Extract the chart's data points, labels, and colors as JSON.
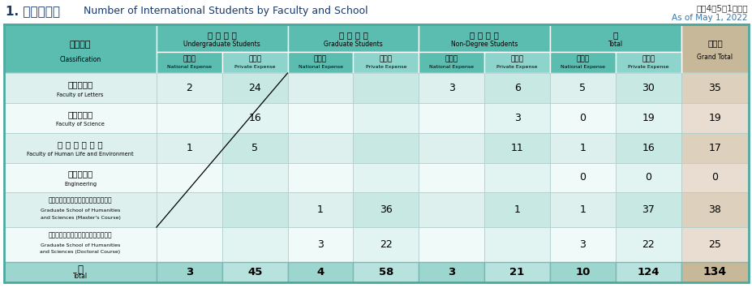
{
  "title_jp": "1. 部局別内訳",
  "title_en": " Number of International Students by Faculty and School",
  "date_jp": "令和4年5月1日現在",
  "date_en": "As of May 1, 2022",
  "col_groups": [
    {
      "label_jp": "学 部 学 生",
      "label_en": "Undergraduate Students",
      "cols": 2
    },
    {
      "label_jp": "大 学 院 生",
      "label_en": "Graduate Students",
      "cols": 2
    },
    {
      "label_jp": "非 正 規 生",
      "label_en": "Non-Degree Students",
      "cols": 2
    },
    {
      "label_jp": "計",
      "label_en": "Total",
      "cols": 2
    }
  ],
  "sub_col_labels": [
    [
      "国　費",
      "National Expense"
    ],
    [
      "私　費",
      "Private Expense"
    ],
    [
      "国　費",
      "National Expense"
    ],
    [
      "私　費",
      "Private Expense"
    ],
    [
      "国　費",
      "National Expense"
    ],
    [
      "私　費",
      "Private Expense"
    ],
    [
      "国　費",
      "National Expense"
    ],
    [
      "私　費",
      "Private Expense"
    ]
  ],
  "rows": [
    {
      "label_jp": "文　学　部",
      "label_en": "Faculty of Letters",
      "values": [
        "2",
        "24",
        "",
        "",
        "3",
        "6",
        "5",
        "30"
      ],
      "grand_total": "35"
    },
    {
      "label_jp": "理　学　部",
      "label_en": "Faculty of Science",
      "values": [
        "",
        "16",
        "",
        "",
        "",
        "3",
        "0",
        "19"
      ],
      "grand_total": "19"
    },
    {
      "label_jp": "生 活 環 境 学 部",
      "label_en": "Faculty of Human Life and Environment",
      "values": [
        "1",
        "5",
        "",
        "",
        "",
        "11",
        "1",
        "16"
      ],
      "grand_total": "17"
    },
    {
      "label_jp": "工　学　部",
      "label_en": "Engineering",
      "values": [
        "",
        "",
        "",
        "",
        "",
        "",
        "0",
        "0"
      ],
      "grand_total": "0"
    },
    {
      "label_jp": "人間文化総合科学研究科博士前期課程",
      "label_en_lines": [
        "Graduate School of Humanities",
        "and Sciences (Master's Course)"
      ],
      "values": [
        "",
        "",
        "1",
        "36",
        "",
        "1",
        "1",
        "37"
      ],
      "grand_total": "38"
    },
    {
      "label_jp": "人間文化総合科学研究科博士後期課程",
      "label_en_lines": [
        "Graduate School of Humanities",
        "and Sciences (Doctoral Course)"
      ],
      "values": [
        "",
        "",
        "3",
        "22",
        "",
        "",
        "3",
        "22"
      ],
      "grand_total": "25"
    },
    {
      "label_jp": "計",
      "label_en": "Total",
      "values": [
        "3",
        "45",
        "4",
        "58",
        "3",
        "21",
        "10",
        "124"
      ],
      "grand_total": "134",
      "is_total": true
    }
  ],
  "colors": {
    "teal_header": "#5bbcb0",
    "teal_subheader_nat": "#5bbcb0",
    "teal_subheader_priv": "#8dd4cc",
    "teal_row_a": "#ddf0ee",
    "teal_row_b": "#f0faf9",
    "teal_row_a_priv": "#c8e8e4",
    "teal_row_b_priv": "#e2f4f2",
    "teal_total_row": "#9dd5cf",
    "teal_total_priv": "#b8e2de",
    "beige_header": "#c8b89a",
    "beige_row_a": "#ddd0bc",
    "beige_row_b": "#e8ddd0",
    "beige_total": "#c8b89a",
    "border_outer": "#4aaa9e",
    "border_inner": "#aaccca"
  }
}
